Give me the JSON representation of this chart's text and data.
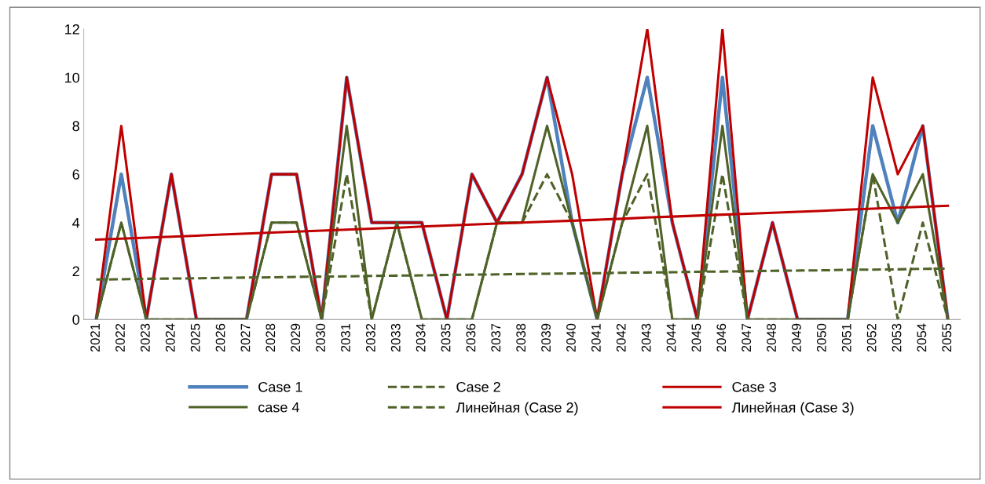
{
  "chart_data": {
    "type": "line",
    "categories": [
      "2021",
      "2022",
      "2023",
      "2024",
      "2025",
      "2026",
      "2027",
      "2028",
      "2029",
      "2030",
      "2031",
      "2032",
      "2033",
      "2034",
      "2035",
      "2036",
      "2037",
      "2038",
      "2039",
      "2040",
      "2041",
      "2042",
      "2043",
      "2044",
      "2045",
      "2046",
      "2047",
      "2048",
      "2049",
      "2050",
      "2051",
      "2052",
      "2053",
      "2054",
      "2055"
    ],
    "ylim": [
      0,
      12
    ],
    "yticks": [
      0,
      2,
      4,
      6,
      8,
      10,
      12
    ],
    "grid": false,
    "legend": "bottom",
    "marker": "none",
    "series": [
      {
        "name": "Case 1",
        "color": "#4f81bd",
        "values": [
          0,
          6,
          0,
          6,
          0,
          0,
          0,
          6,
          6,
          0,
          10,
          4,
          4,
          4,
          0,
          6,
          4,
          6,
          10,
          4,
          0,
          6,
          10,
          4,
          0,
          10,
          0,
          4,
          0,
          0,
          0,
          8,
          4,
          8,
          0
        ]
      },
      {
        "name": "Case 2",
        "color": "#4f6228",
        "line_style": "dashed",
        "values": [
          0,
          4,
          0,
          0,
          0,
          0,
          0,
          4,
          4,
          0,
          6,
          0,
          4,
          0,
          0,
          0,
          4,
          4,
          6,
          4,
          0,
          4,
          6,
          0,
          0,
          6,
          0,
          0,
          0,
          0,
          0,
          6,
          0,
          4,
          0
        ]
      },
      {
        "name": "Case 3",
        "color": "#c00000",
        "values": [
          0,
          8,
          0,
          6,
          0,
          0,
          0,
          6,
          6,
          0,
          10,
          4,
          4,
          4,
          0,
          6,
          4,
          6,
          10,
          6,
          0,
          6,
          12,
          4,
          0,
          12,
          0,
          4,
          0,
          0,
          0,
          10,
          6,
          8,
          0
        ]
      },
      {
        "name": "case 4",
        "color": "#4f6228",
        "values": [
          0,
          4,
          0,
          0,
          0,
          0,
          0,
          4,
          4,
          0,
          8,
          0,
          4,
          0,
          0,
          0,
          4,
          4,
          8,
          4,
          0,
          4,
          8,
          0,
          0,
          8,
          0,
          0,
          0,
          0,
          0,
          6,
          4,
          6,
          0
        ]
      },
      {
        "name": "Линейная (Case 2)",
        "color": "#4f6228",
        "line_style": "dashed",
        "values": [
          1.65,
          1.66,
          1.68,
          1.69,
          1.7,
          1.72,
          1.73,
          1.74,
          1.76,
          1.77,
          1.78,
          1.8,
          1.81,
          1.82,
          1.84,
          1.85,
          1.86,
          1.88,
          1.89,
          1.9,
          1.91,
          1.93,
          1.94,
          1.95,
          1.97,
          1.98,
          1.99,
          2.01,
          2.02,
          2.03,
          2.05,
          2.06,
          2.07,
          2.09,
          2.1
        ]
      },
      {
        "name": "Линейная (Case 3)",
        "color": "#c00000",
        "values": [
          3.3,
          3.34,
          3.38,
          3.42,
          3.46,
          3.51,
          3.55,
          3.59,
          3.63,
          3.67,
          3.71,
          3.75,
          3.79,
          3.84,
          3.88,
          3.92,
          3.96,
          4.0,
          4.04,
          4.08,
          4.12,
          4.16,
          4.21,
          4.25,
          4.29,
          4.33,
          4.37,
          4.41,
          4.45,
          4.49,
          4.54,
          4.58,
          4.62,
          4.66,
          4.7
        ]
      }
    ]
  }
}
